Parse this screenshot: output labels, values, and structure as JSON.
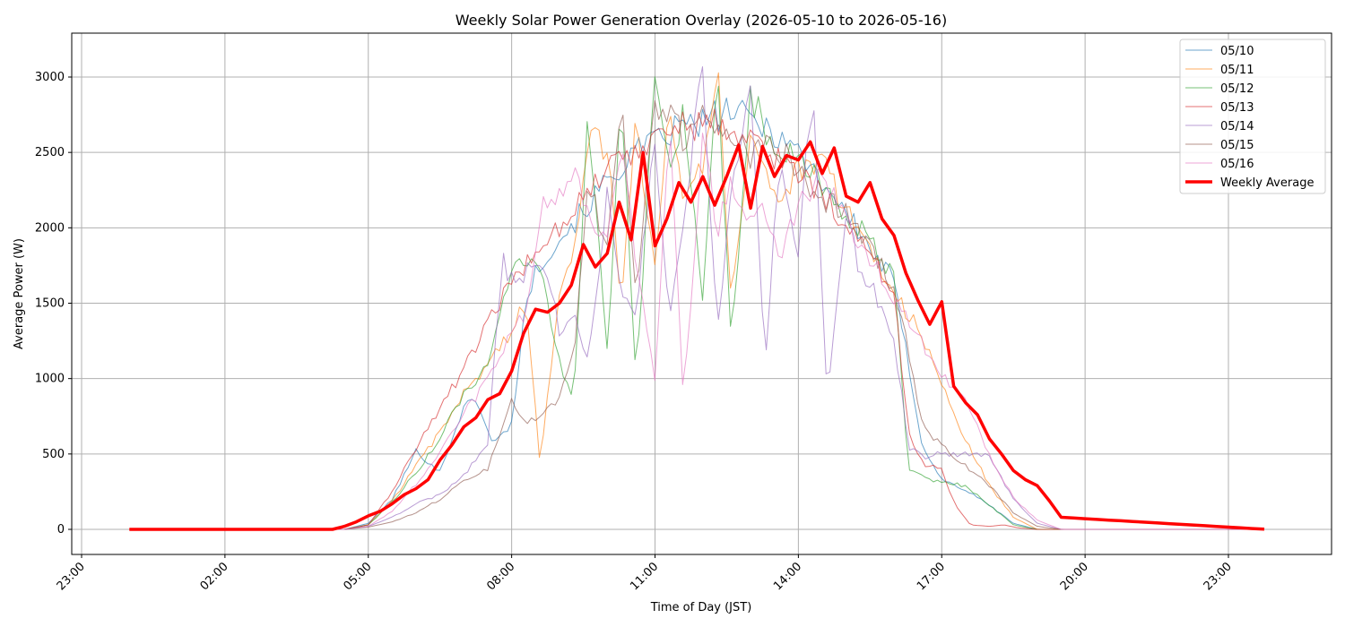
{
  "chart_data": {
    "type": "line",
    "title": "Weekly Solar Power Generation Overlay (2026-05-10 to 2026-05-16)",
    "xlabel": "Time of Day (JST)",
    "ylabel": "Average Power (W)",
    "xlim_hours": [
      22.75,
      26.25
    ],
    "ylim": [
      -160,
      3280
    ],
    "x_ticks": [
      {
        "hour": 23,
        "label": "23:00"
      },
      {
        "hour": 26,
        "label": "02:00"
      },
      {
        "hour": 29,
        "label": "05:00"
      },
      {
        "hour": 32,
        "label": "08:00"
      },
      {
        "hour": 35,
        "label": "11:00"
      },
      {
        "hour": 38,
        "label": "14:00"
      },
      {
        "hour": 41,
        "label": "17:00"
      },
      {
        "hour": 44,
        "label": "20:00"
      },
      {
        "hour": 47,
        "label": "23:00"
      }
    ],
    "y_ticks": [
      0,
      500,
      1000,
      1500,
      2000,
      2500,
      3000
    ],
    "grid": true,
    "legend_position": "top-right",
    "series": [
      {
        "name": "05/10",
        "color": "#1f77b4",
        "width": 1,
        "opacity": 0.65,
        "x": [
          24,
          28,
          28.5,
          29,
          29.5,
          30,
          30.5,
          31,
          31.3,
          31.6,
          32,
          32.3,
          32.6,
          33,
          33.5,
          34,
          34.5,
          35,
          35.5,
          36,
          36.5,
          37,
          37.5,
          38,
          38.5,
          39,
          39.5,
          40,
          40.3,
          40.6,
          41,
          41.5,
          42,
          42.5,
          43,
          43.5,
          47.8
        ],
        "y": [
          0,
          0,
          0,
          40,
          200,
          520,
          380,
          820,
          850,
          560,
          700,
          1520,
          1780,
          1930,
          2110,
          2310,
          2480,
          2560,
          2670,
          2690,
          2780,
          2720,
          2640,
          2510,
          2310,
          2100,
          1860,
          1640,
          1100,
          550,
          330,
          260,
          160,
          40,
          0,
          0,
          0
        ]
      },
      {
        "name": "05/11",
        "color": "#ff7f0e",
        "width": 1,
        "opacity": 0.65,
        "x": [
          24,
          28,
          28.5,
          29,
          29.5,
          30,
          30.5,
          31,
          31.5,
          32,
          32.3,
          32.6,
          33,
          33.3,
          33.6,
          34,
          34.3,
          34.6,
          35,
          35.3,
          35.6,
          36,
          36.3,
          36.6,
          37,
          37.3,
          37.6,
          38,
          38.5,
          39,
          39.5,
          40,
          40.5,
          41,
          41.5,
          42,
          42.5,
          43,
          43.5,
          47.8
        ],
        "y": [
          0,
          0,
          0,
          30,
          190,
          420,
          640,
          900,
          1100,
          1320,
          1500,
          420,
          1620,
          1850,
          2640,
          2520,
          1500,
          2700,
          1800,
          2850,
          2200,
          2450,
          3060,
          1520,
          2680,
          2380,
          2180,
          2370,
          2420,
          2130,
          1860,
          1580,
          1330,
          960,
          590,
          290,
          80,
          0,
          0,
          0
        ]
      },
      {
        "name": "05/12",
        "color": "#2ca02c",
        "width": 1,
        "opacity": 0.65,
        "x": [
          24,
          28,
          28.5,
          29,
          29.5,
          30,
          30.5,
          31,
          31.5,
          32,
          32.3,
          32.6,
          33,
          33.3,
          33.6,
          34,
          34.3,
          34.6,
          35,
          35.3,
          35.6,
          36,
          36.3,
          36.6,
          37,
          37.3,
          37.6,
          38,
          38.5,
          39,
          39.5,
          40,
          40.3,
          40.6,
          41,
          41.5,
          42,
          42.5,
          43,
          43.5,
          47.8
        ],
        "y": [
          0,
          0,
          0,
          30,
          180,
          380,
          600,
          900,
          1070,
          1700,
          1780,
          1760,
          1100,
          880,
          2790,
          1150,
          2870,
          950,
          3070,
          2400,
          2790,
          1450,
          3000,
          1200,
          2900,
          2640,
          2420,
          2510,
          2230,
          2100,
          1900,
          1660,
          400,
          350,
          310,
          290,
          160,
          30,
          0,
          0,
          0
        ]
      },
      {
        "name": "05/13",
        "color": "#d62728",
        "width": 1,
        "opacity": 0.65,
        "x": [
          24,
          28,
          28.5,
          29,
          29.5,
          30,
          30.5,
          31,
          31.5,
          32,
          32.5,
          33,
          33.5,
          34,
          34.5,
          35,
          35.5,
          36,
          36.5,
          37,
          37.5,
          38,
          38.5,
          39,
          39.5,
          40,
          40.3,
          40.6,
          41,
          41.3,
          41.6,
          42,
          42.3,
          42.6,
          43,
          43.5,
          47.8
        ],
        "y": [
          0,
          0,
          0,
          30,
          250,
          540,
          810,
          1060,
          1360,
          1640,
          1850,
          2020,
          2210,
          2390,
          2500,
          2630,
          2670,
          2690,
          2680,
          2600,
          2470,
          2370,
          2210,
          2040,
          1800,
          1570,
          660,
          440,
          390,
          150,
          30,
          20,
          30,
          10,
          0,
          0,
          0
        ]
      },
      {
        "name": "05/14",
        "color": "#9467bd",
        "width": 1,
        "opacity": 0.65,
        "x": [
          24,
          28,
          28.5,
          29,
          29.5,
          30,
          30.5,
          31,
          31.5,
          31.8,
          32,
          32.5,
          32.8,
          33,
          33.3,
          33.6,
          34,
          34.3,
          34.6,
          35,
          35.3,
          35.6,
          36,
          36.3,
          36.6,
          37,
          37.3,
          37.6,
          38,
          38.3,
          38.6,
          39,
          39.3,
          39.6,
          40,
          40.3,
          40.6,
          41,
          41.5,
          42,
          42.5,
          43,
          43.5,
          47.8
        ],
        "y": [
          0,
          0,
          0,
          20,
          80,
          170,
          230,
          360,
          560,
          1790,
          1650,
          1740,
          1600,
          1320,
          1400,
          1160,
          2210,
          1500,
          1430,
          2640,
          1350,
          2050,
          3130,
          1260,
          2190,
          2960,
          1070,
          2440,
          1850,
          2950,
          880,
          2100,
          1700,
          1580,
          1270,
          550,
          480,
          500,
          500,
          480,
          200,
          40,
          0,
          0
        ]
      },
      {
        "name": "05/15",
        "color": "#8c564b",
        "width": 1,
        "opacity": 0.65,
        "x": [
          24,
          28,
          28.5,
          29,
          29.5,
          30,
          30.5,
          31,
          31.5,
          32,
          32.3,
          32.6,
          33,
          33.3,
          33.6,
          34,
          34.3,
          34.6,
          35,
          35.3,
          35.6,
          36,
          36.3,
          36.6,
          37,
          37.5,
          38,
          38.5,
          39,
          39.5,
          40,
          40.3,
          40.6,
          41,
          41.5,
          42,
          42.5,
          43,
          43.5,
          47.8
        ],
        "y": [
          0,
          0,
          0,
          15,
          50,
          110,
          200,
          330,
          400,
          880,
          700,
          750,
          880,
          1150,
          2270,
          1900,
          2810,
          1590,
          2760,
          2770,
          2600,
          2780,
          2660,
          2590,
          2460,
          2550,
          2380,
          2200,
          2080,
          1860,
          1600,
          1200,
          680,
          560,
          420,
          290,
          110,
          20,
          0,
          0
        ]
      },
      {
        "name": "05/16",
        "color": "#e377c2",
        "width": 1,
        "opacity": 0.65,
        "x": [
          24,
          28,
          28.5,
          29,
          29.5,
          30,
          30.5,
          31,
          31.5,
          32,
          32.3,
          32.6,
          33,
          33.3,
          33.6,
          34,
          34.3,
          34.6,
          35,
          35.3,
          35.6,
          36,
          36.3,
          36.6,
          37,
          37.3,
          37.6,
          38,
          38.5,
          39,
          39.5,
          40,
          40.5,
          41,
          41.5,
          42,
          42.5,
          43,
          43.5,
          47.8
        ],
        "y": [
          0,
          0,
          0,
          20,
          120,
          300,
          500,
          760,
          1000,
          1330,
          1400,
          2120,
          2200,
          2340,
          2100,
          1890,
          2600,
          1800,
          1010,
          2730,
          850,
          2640,
          1980,
          2290,
          2000,
          2150,
          1800,
          2140,
          2350,
          2050,
          1780,
          1550,
          1290,
          1010,
          870,
          480,
          210,
          60,
          0,
          0
        ]
      },
      {
        "name": "Weekly Average",
        "color": "#ff0000",
        "width": 3.5,
        "opacity": 1,
        "x": [
          24,
          28.25,
          28.5,
          28.75,
          29,
          29.25,
          29.5,
          29.75,
          30,
          30.25,
          30.5,
          30.75,
          31,
          31.25,
          31.5,
          31.75,
          32,
          32.25,
          32.5,
          32.75,
          33,
          33.25,
          33.5,
          33.75,
          34,
          34.25,
          34.5,
          34.75,
          35,
          35.25,
          35.5,
          35.75,
          36,
          36.25,
          36.5,
          36.75,
          37,
          37.25,
          37.5,
          37.75,
          38,
          38.25,
          38.5,
          38.75,
          39,
          39.25,
          39.5,
          39.75,
          40,
          40.25,
          40.5,
          40.75,
          41,
          41.25,
          41.5,
          41.75,
          42,
          42.25,
          42.5,
          42.75,
          43,
          43.25,
          43.5,
          47.8
        ],
        "y": [
          0,
          0,
          20,
          50,
          90,
          120,
          170,
          230,
          270,
          330,
          460,
          560,
          680,
          740,
          860,
          900,
          1050,
          1300,
          1460,
          1440,
          1500,
          1620,
          1890,
          1740,
          1830,
          2170,
          1920,
          2500,
          1880,
          2060,
          2300,
          2170,
          2340,
          2150,
          2340,
          2550,
          2130,
          2540,
          2340,
          2480,
          2450,
          2570,
          2360,
          2530,
          2210,
          2170,
          2300,
          2060,
          1950,
          1700,
          1520,
          1360,
          1510,
          950,
          840,
          760,
          600,
          500,
          390,
          330,
          290,
          190,
          80,
          0
        ]
      }
    ]
  }
}
